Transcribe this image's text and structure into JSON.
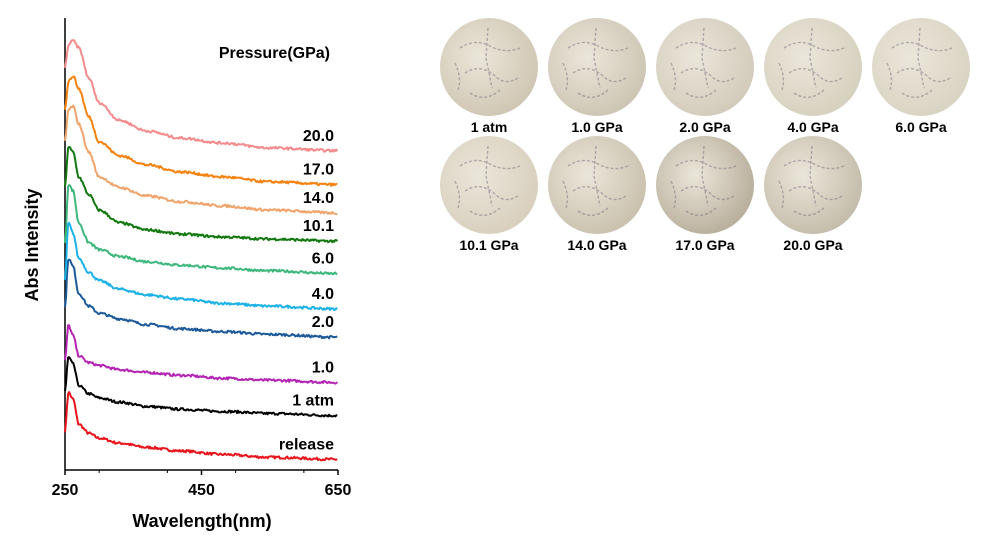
{
  "chart_data": {
    "type": "line",
    "title": "",
    "xlabel": "Wavelength(nm)",
    "ylabel": "Abs Intensity",
    "xlim": [
      250,
      650
    ],
    "xticks": [
      250,
      450,
      650
    ],
    "yticks_shown": false,
    "grid": false,
    "legend_title": "Pressure(GPa)",
    "series": [
      {
        "name": "release",
        "color": "#e8141b",
        "x": [
          250,
          255,
          262,
          270,
          285,
          300,
          330,
          370,
          420,
          480,
          550,
          650
        ],
        "y": [
          0.45,
          1.0,
          0.9,
          0.55,
          0.42,
          0.35,
          0.28,
          0.22,
          0.17,
          0.12,
          0.08,
          0.05
        ]
      },
      {
        "name": "1 atm",
        "color": "#000000",
        "x": [
          250,
          255,
          262,
          270,
          285,
          300,
          330,
          370,
          420,
          480,
          550,
          650
        ],
        "y": [
          1.02,
          1.5,
          1.4,
          1.1,
          0.98,
          0.92,
          0.86,
          0.8,
          0.76,
          0.73,
          0.7,
          0.67
        ]
      },
      {
        "name": "1.0",
        "color": "#b424b4",
        "x": [
          250,
          255,
          262,
          270,
          285,
          300,
          330,
          370,
          420,
          480,
          550,
          650
        ],
        "y": [
          1.45,
          1.95,
          1.8,
          1.52,
          1.42,
          1.38,
          1.32,
          1.28,
          1.24,
          1.2,
          1.17,
          1.14
        ]
      },
      {
        "name": "2.0",
        "color": "#1d5a99",
        "x": [
          250,
          255,
          262,
          270,
          285,
          300,
          330,
          370,
          420,
          480,
          550,
          650
        ],
        "y": [
          2.2,
          2.9,
          2.78,
          2.4,
          2.22,
          2.12,
          2.04,
          1.96,
          1.9,
          1.86,
          1.82,
          1.78
        ]
      },
      {
        "name": "4.0",
        "color": "#1cb2e8",
        "x": [
          250,
          255,
          262,
          270,
          285,
          300,
          330,
          370,
          420,
          480,
          550,
          650
        ],
        "y": [
          2.6,
          3.4,
          3.25,
          2.9,
          2.7,
          2.58,
          2.46,
          2.38,
          2.32,
          2.26,
          2.22,
          2.18
        ]
      },
      {
        "name": "6.0",
        "color": "#3db77c",
        "x": [
          250,
          255,
          262,
          270,
          285,
          300,
          330,
          370,
          420,
          480,
          550,
          650
        ],
        "y": [
          3.1,
          3.95,
          3.85,
          3.4,
          3.12,
          3.02,
          2.92,
          2.85,
          2.8,
          2.76,
          2.72,
          2.68
        ]
      },
      {
        "name": "10.1",
        "color": "#12780f",
        "x": [
          250,
          255,
          262,
          270,
          285,
          300,
          330,
          370,
          420,
          480,
          550,
          650
        ],
        "y": [
          3.9,
          4.48,
          4.4,
          4.05,
          3.8,
          3.58,
          3.4,
          3.3,
          3.24,
          3.2,
          3.17,
          3.14
        ]
      },
      {
        "name": "14.0",
        "color": "#efa46b",
        "x": [
          250,
          255,
          262,
          270,
          285,
          300,
          330,
          370,
          420,
          480,
          550,
          650
        ],
        "y": [
          4.55,
          5.0,
          5.05,
          4.8,
          4.4,
          4.05,
          3.9,
          3.78,
          3.7,
          3.64,
          3.58,
          3.54
        ]
      },
      {
        "name": "17.0",
        "color": "#f5820e",
        "x": [
          250,
          255,
          262,
          270,
          285,
          300,
          330,
          370,
          420,
          480,
          550,
          650
        ],
        "y": [
          5.0,
          5.4,
          5.48,
          5.3,
          4.9,
          4.55,
          4.35,
          4.22,
          4.12,
          4.05,
          3.98,
          3.94
        ]
      },
      {
        "name": "20.0",
        "color": "#f38a8b",
        "x": [
          250,
          255,
          262,
          270,
          285,
          300,
          330,
          370,
          420,
          480,
          550,
          650
        ],
        "y": [
          5.6,
          5.92,
          5.98,
          5.88,
          5.45,
          5.1,
          4.85,
          4.7,
          4.6,
          4.53,
          4.46,
          4.42
        ]
      }
    ]
  },
  "micrographs": [
    {
      "label": "1 atm",
      "tone": "#cfc6b2"
    },
    {
      "label": "1.0 GPa",
      "tone": "#cdc5b3"
    },
    {
      "label": "2.0 GPa",
      "tone": "#d2cbbb"
    },
    {
      "label": "4.0 GPa",
      "tone": "#d6d0be"
    },
    {
      "label": "6.0 GPa",
      "tone": "#d9d3c2"
    },
    {
      "label": "10.1 GPa",
      "tone": "#d8cfbd"
    },
    {
      "label": "14.0 GPa",
      "tone": "#c9c1ad"
    },
    {
      "label": "17.0 GPa",
      "tone": "#b8ae9b"
    },
    {
      "label": "20.0 GPa",
      "tone": "#c4bcaa"
    }
  ]
}
